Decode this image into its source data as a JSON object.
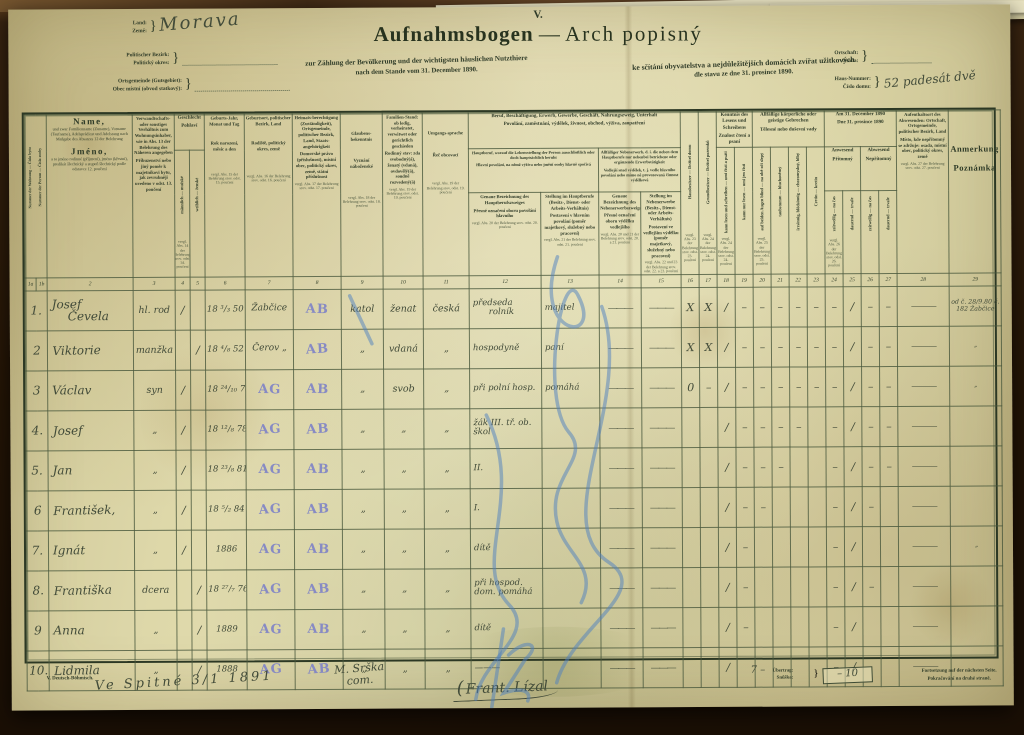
{
  "page": {
    "form_number": "V.",
    "title_de": "Aufnahmsbogen",
    "title_sep": "—",
    "title_cs": "Arch popisný",
    "subtitle_de": "zur Zählung der Bevölkerung und der wichtigsten häuslichen Nutzthiere",
    "subtitle_de2": "nach dem Stande vom 31. December 1890.",
    "subtitle_cs": "ke sčítání obyvatelstva a nejdůležitějších domácích zvířat užitkových",
    "subtitle_cs2": "dle stavu ze dne 31. prosince 1890."
  },
  "colors": {
    "paper": "#ded7ab",
    "print_ink": "#2f3b28",
    "handwriting_ink": "#424b39",
    "stamp_blue": "#7b80c8",
    "pencil_blue": "#4d80c0",
    "desk_brown": "#2a1b0d"
  },
  "header_fields": {
    "land_label": "Land:",
    "zeme_label": "Země:",
    "land_value": "Morava",
    "bezirk_label": "Politischer Bezirk:",
    "okres_label": "Politický okres:",
    "bezirk_value": "",
    "gemeinde_label": "Ortsgemeinde (Gutsgebiet):",
    "obec_label": "Obec místní (obvod statkový):",
    "gemeinde_value": "",
    "ortschaft_label": "Ortschaft:",
    "osada_label": "Osada:",
    "ortschaft_value": "",
    "hausnummer_label": "Haus-Nummer:",
    "cislo_domu_label": "Číslo domu:",
    "hausnummer_value": "52 padesát dvě"
  },
  "table": {
    "cols": {
      "c1a": "Nummer der Wohnung — Číslo bytu",
      "c1b": "Nummer der Person — Číslo osoby",
      "c2": {
        "big_de": "Name,",
        "small_de": "und zwar Familienname (Zuname), Vorname (Taufname), Adelsprädicat und Adelsrang nach Maßgabe des Absatzes 12 der Belehrung",
        "big_cs": "Jméno,",
        "small_cs": "a to jméno rodinné (příjmení), jméno (křestní), predikát šlechtický a stupeň šlechtický podle odstavce 12. poučení",
        "note": ""
      },
      "c3": {
        "de": "Verwandtschafts- oder sonstiges Verhältnis zum Wohnungsinhaber, wie in Abs. 13 der Belehrung des Näheren angegeben",
        "cs": "Příbuzenství nebo jiný poměr k majetníkovi bytu, jak zevrubněji uvedeno v odst. 13. poučení",
        "note": ""
      },
      "sex_group": {
        "de": "Geschlecht",
        "cs": "Pohlaví"
      },
      "c4": "männlich — mužské",
      "c5": "weiblich — ženské",
      "sex_note": "vergl. Abs. 14 der Belehrung srov. odst. 14. poučení",
      "c6": {
        "de": "Geburts-Jahr, Monat und Tag",
        "cs": "Rok narození, měsíc a den",
        "note": "vergl. Abs. 15 der Belehrung srov. odst. 15. poučení"
      },
      "c7": {
        "de": "Geburtsort, politischer Bezirk, Land",
        "cs": "Rodiště, politický okres, země",
        "note": "vergl. Abs. 16 der Belehrung srov. odst. 16. poučení"
      },
      "c8": {
        "de": "Heimats-berechtigung (Zuständigkeit), Ortsgemeinde, politischer Bezirk, Land, Staats-angehörigkeit",
        "cs": "Domovské právo (příslušnost), místní obec, politický okres, země, státní příslušnost",
        "note": "vergl. Abs. 17 der Belehrung srov. odst. 17. poučení"
      },
      "c9": {
        "de": "Glaubens-bekenntnis",
        "cs": "Vyznání náboženské",
        "note": "vergl. Abs. 18 der Belehrung srov. odst. 18. poučení"
      },
      "c10": {
        "de": "Familien-Stand: ob ledig, verheiratet, verwitwet oder gerichtlich geschieden",
        "cs": "Rodinný stav: zda svobodný(á), ženatý (vdaná), ovdovělý(á), soudně rozvedený(á)",
        "note": "vergl. Abs. 19 der Belehrung srov. odst. 19. poučení"
      },
      "c11": {
        "de": "Umgangs-sprache",
        "cs": "Řeč obcovací",
        "note": "vergl. Abs. 19 der Belehrung srov. odst. 19. poučení"
      },
      "beruf_group": {
        "de": "Beruf, Beschäftigung, Erwerb, Gewerbe, Geschäft, Nahrungszweig, Unterhalt",
        "cs": "Povolání, zaměstnání, výdělek, živnost, obchod, výživa, zaopatření"
      },
      "haupt_group": {
        "de": "Hauptberuf, worauf die Lebensstellung der Person ausschließlich oder doch hauptsächlich beruht",
        "cs": "Hlavní povolání, na němž výživa nebo jmění osoby hlavně spočívá"
      },
      "neben_group": {
        "de": "Allfälliger Nebenerwerb, d. i. die neben dem Hauptberufe nur nebenbei betriebene oder ergänzende Erwerbstätigkeit",
        "cs": "Vedlejší snad výdělek, t. j. vedle hlavního povolání nebo mimo ně provozovaná činnost výdělková"
      },
      "c12": {
        "de": "Genaue Bezeichnung des Hauptberufszweiges",
        "cs": "Přesné označení oboru povolání hlavního",
        "note": "vergl. Abs. 20 der Belehrung srov. odst. 20. poučení"
      },
      "c13": {
        "de": "Stellung im Hauptberufe (Besitz-, Dienst- oder Arbeits-Verhältnis)",
        "cs": "Postavení v hlavním povolání (poměr majetkový, služebný nebo pracovní)",
        "note": "vergl. Abs. 21 der Belehrung srov. odst. 21. poučení"
      },
      "c14": {
        "de": "Genaue Bezeichnung des Nebenerwerbszweiges",
        "cs": "Přesné označení oboru výdělku vedlejšího",
        "note": "vergl. Abs. 20 und 21 der Belehrung srov. odst. 20. a 21. poučení"
      },
      "c15": {
        "de": "Stellung im Nebenerwerbe (Besitz-, Dienst- oder Arbeits-Verhältnis)",
        "cs": "Postavení ve vedlejším výdělku (poměr majetkový, služebný nebo pracovní)",
        "note": "vergl. Abs. 22 und 23 der Belehrung srov. odst. 22. a 23. poučení"
      },
      "c16": "Hausbesitzer — Držitel domu",
      "c16_note": "vergl. Abs. 23 der Belehrung srov. odst. 23. poučení",
      "c17": "Grundbesitzer — Držitel pozemků",
      "c17_note": "vergl. Abs. 24 der Belehrung srov. odst. 24. poučení",
      "read_group": {
        "de": "Kenntnis des Lesens und Schreibens",
        "cs": "Znalost čtení a psaní"
      },
      "c18": "kann lesen und schreiben — umí čísti a psáti",
      "c19": "kann nur lesen — umí jen čísti",
      "read_note": "vergl. Abs. 24 der Belehrung srov. odst. 24. poučení",
      "infirm_group": {
        "de": "Allfällige körperliche oder geistige Gebrechen",
        "cs": "Tělesné nebo duševní vady"
      },
      "c20": "auf beiden Augen blind — na obě oči slepý",
      "c21": "taubstumm — hluchoněmý",
      "c22": "irrsinnig, blödsinnig — choromyslný, blbý",
      "c23": "Cretin — kretin",
      "infirm_note": "vergl. Abs. 25 der Belehrung srov. odst. 25. poučení",
      "date_group": {
        "de": "Am 31. December 1890",
        "cs": "Dne 31. prosince 1890"
      },
      "anwesend": {
        "de": "Anwesend",
        "cs": "Přítomný"
      },
      "abwesend": {
        "de": "Abwesend",
        "cs": "Nepřítomný"
      },
      "c24": "zeitweilig — na čas",
      "c25": "dauernd — trvale",
      "c26": "zeitweilig — na čas",
      "c27": "dauernd — trvale",
      "date_note": "vergl. Abs. 26 der Belehrung srov. odst. 26. poučení",
      "c28": {
        "de": "Aufenthaltsort des Abwesenden: Ortschaft, Ortsgemeinde, politischer Bezirk, Land",
        "cs": "Místo, kde nepřítomný se zdržuje: osada, místní obec, politický okres, země",
        "note": "vergl. Abs. 27 der Belehrung srov. odst. 27. poučení"
      },
      "c29": {
        "de": "Anmerkung",
        "cs": "Poznámka",
        "note": ""
      }
    },
    "col_numbers": [
      "1a",
      "1b",
      "2",
      "3",
      "4",
      "5",
      "6",
      "7",
      "8",
      "9",
      "10",
      "11",
      "12",
      "13",
      "14",
      "15",
      "16",
      "17",
      "18",
      "19",
      "20",
      "21",
      "22",
      "23",
      "24",
      "25",
      "26",
      "27",
      "28",
      "29"
    ],
    "rows": [
      {
        "no": "1.",
        "name": "Josef",
        "name2": "Čevela",
        "rel": "hl. rod",
        "sxm": "/",
        "sxf": "",
        "birth": "18 ³∕₃ 50",
        "bp": "Žabčice",
        "bp_stamp": "",
        "hr": "",
        "hr_stamp": "AB",
        "rel9": "katol",
        "fs": "ženat",
        "lang": "česká",
        "occ": "předseda",
        "occ2": "rolník",
        "pos": "majitel",
        "s14": "———",
        "s15": "———",
        "t16": "X",
        "t17": "X",
        "t18": "/",
        "t19": "–",
        "t20": "–",
        "t21": "–",
        "t22": "–",
        "t23": "–",
        "t24": "–",
        "t25": "/",
        "t26": "–",
        "t27": "–",
        "c28": "———",
        "c29": "od č. 28∕9.80 č. 182 Žabčice"
      },
      {
        "no": "2",
        "name": "Viktorie",
        "rel": "manžka",
        "sxm": "",
        "sxf": "/",
        "birth": "18 ⁴∕₈ 52",
        "bp": "Čerov „",
        "bp_stamp": "",
        "hr": "",
        "hr_stamp": "AB",
        "rel9": "„",
        "fs": "vdaná",
        "lang": "„",
        "occ": "hospodyně",
        "pos": "paní",
        "s14": "———",
        "s15": "———",
        "t16": "X",
        "t17": "X",
        "t18": "/",
        "t19": "–",
        "t20": "–",
        "t21": "–",
        "t22": "–",
        "t23": "–",
        "t24": "–",
        "t25": "/",
        "t26": "–",
        "t27": "–",
        "c28": "———",
        "c29": "„"
      },
      {
        "no": "3",
        "name": "Václav",
        "rel": "syn",
        "sxm": "/",
        "sxf": "",
        "birth": "18 ²⁴∕₁₀ 74",
        "bp": "",
        "bp_stamp": "AG",
        "hr": "",
        "hr_stamp": "AB",
        "rel9": "„",
        "fs": "svob",
        "lang": "„",
        "occ": "při polní hosp.",
        "pos": "pomáhá",
        "s14": "———",
        "s15": "———",
        "t16": "0",
        "t17": "–",
        "t18": "/",
        "t19": "–",
        "t20": "–",
        "t21": "–",
        "t22": "–",
        "t23": "–",
        "t24": "–",
        "t25": "/",
        "t26": "–",
        "t27": "–",
        "c28": "———",
        "c29": "„"
      },
      {
        "no": "4.",
        "name": "Josef",
        "rel": "„",
        "sxm": "/",
        "sxf": "",
        "birth": "18 ¹²∕₈ 78",
        "bp": "",
        "bp_stamp": "AG",
        "hr": "",
        "hr_stamp": "AB",
        "rel9": "„",
        "fs": "„",
        "lang": "„",
        "occ": "žák III. tř. ob. škol",
        "pos": "",
        "s14": "———",
        "s15": "———",
        "t16": "",
        "t17": "",
        "t18": "/",
        "t19": "–",
        "t20": "–",
        "t21": "–",
        "t22": "–",
        "t23": "",
        "t24": "–",
        "t25": "/",
        "t26": "–",
        "t27": "–",
        "c28": "———",
        "c29": ""
      },
      {
        "no": "5.",
        "name": "Jan",
        "rel": "„",
        "sxm": "/",
        "sxf": "",
        "birth": "18 ²³∕₈ 81",
        "bp": "",
        "bp_stamp": "AG",
        "hr": "",
        "hr_stamp": "AB",
        "rel9": "„",
        "fs": "„",
        "lang": "„",
        "occ": "II.",
        "pos": "",
        "s14": "———",
        "s15": "———",
        "t16": "",
        "t17": "",
        "t18": "/",
        "t19": "–",
        "t20": "–",
        "t21": "–",
        "t22": "",
        "t23": "",
        "t24": "–",
        "t25": "/",
        "t26": "–",
        "t27": "–",
        "c28": "———",
        "c29": ""
      },
      {
        "no": "6",
        "name": "František,",
        "rel": "„",
        "sxm": "/",
        "sxf": "",
        "birth": "18 ⁵∕₂ 84",
        "bp": "",
        "bp_stamp": "AG",
        "hr": "",
        "hr_stamp": "AB",
        "rel9": "„",
        "fs": "„",
        "lang": "„",
        "occ": "I.",
        "pos": "",
        "s14": "———",
        "s15": "———",
        "t16": "",
        "t17": "",
        "t18": "/",
        "t19": "–",
        "t20": "–",
        "t21": "",
        "t22": "",
        "t23": "",
        "t24": "–",
        "t25": "/",
        "t26": "–",
        "t27": "",
        "c28": "———",
        "c29": ""
      },
      {
        "no": "7.",
        "name": "Ignát",
        "rel": "„",
        "sxm": "/",
        "sxf": "",
        "birth": "1886",
        "bp": "",
        "bp_stamp": "AG",
        "hr": "",
        "hr_stamp": "AB",
        "rel9": "„",
        "fs": "„",
        "lang": "„",
        "occ": "dítě",
        "pos": "",
        "s14": "———",
        "s15": "———",
        "t16": "",
        "t17": "",
        "t18": "/",
        "t19": "–",
        "t20": "",
        "t21": "",
        "t22": "",
        "t23": "",
        "t24": "–",
        "t25": "/",
        "t26": "",
        "t27": "",
        "c28": "———",
        "c29": "„"
      },
      {
        "no": "8.",
        "name": "Františka",
        "rel": "dcera",
        "sxm": "",
        "sxf": "/",
        "birth": "18 ²⁷∕₇ 76",
        "bp": "",
        "bp_stamp": "AG",
        "hr": "",
        "hr_stamp": "AB",
        "rel9": "„",
        "fs": "„",
        "lang": "„",
        "occ": "při hospod. dom. pomáhá",
        "pos": "",
        "s14": "———",
        "s15": "———",
        "t16": "",
        "t17": "",
        "t18": "/",
        "t19": "–",
        "t20": "",
        "t21": "",
        "t22": "",
        "t23": "",
        "t24": "–",
        "t25": "/",
        "t26": "–",
        "t27": "",
        "c28": "———",
        "c29": ""
      },
      {
        "no": "9",
        "name": "Anna",
        "rel": "„",
        "sxm": "",
        "sxf": "/",
        "birth": "1889",
        "bp": "",
        "bp_stamp": "AG",
        "hr": "",
        "hr_stamp": "AB",
        "rel9": "„",
        "fs": "„",
        "lang": "„",
        "occ": "dítě",
        "pos": "",
        "s14": "———",
        "s15": "———",
        "t16": "",
        "t17": "",
        "t18": "/",
        "t19": "–",
        "t20": "",
        "t21": "",
        "t22": "",
        "t23": "",
        "t24": "–",
        "t25": "/",
        "t26": "",
        "t27": "",
        "c28": "———",
        "c29": ""
      },
      {
        "no": "10.",
        "name": "Lidmila",
        "rel": "„",
        "sxm": "",
        "sxf": "/",
        "birth": "1888",
        "bp": "",
        "bp_stamp": "AG",
        "hr": "",
        "hr_stamp": "AB",
        "rel9": "„",
        "fs": "„",
        "lang": "„",
        "occ": "———",
        "pos": "",
        "s14": "———",
        "s15": "———",
        "t16": "",
        "t17": "",
        "t18": "/",
        "t19": "",
        "t20": "",
        "t21": "",
        "t22": "",
        "t23": "",
        "t24": "–",
        "t25": "/",
        "t26": "",
        "t27": "",
        "c28": "———",
        "c29": ""
      }
    ]
  },
  "footer": {
    "imprint": "V. Deutsch-Böhmisch.",
    "place_date": "Ve Spitné  3∕1  1891",
    "enumerator": "M. Srška",
    "enumerator2": "com.",
    "signature": "Frant. Lízal",
    "tally": "7 –",
    "uebertrag_label": "Übertrag:",
    "snuska_label": "Snůška:",
    "uebertrag_value": "– 10",
    "continuation_de": "Fortsetzung auf der nächsten Seite.",
    "continuation_cs": "Pokračování na druhé straně."
  }
}
